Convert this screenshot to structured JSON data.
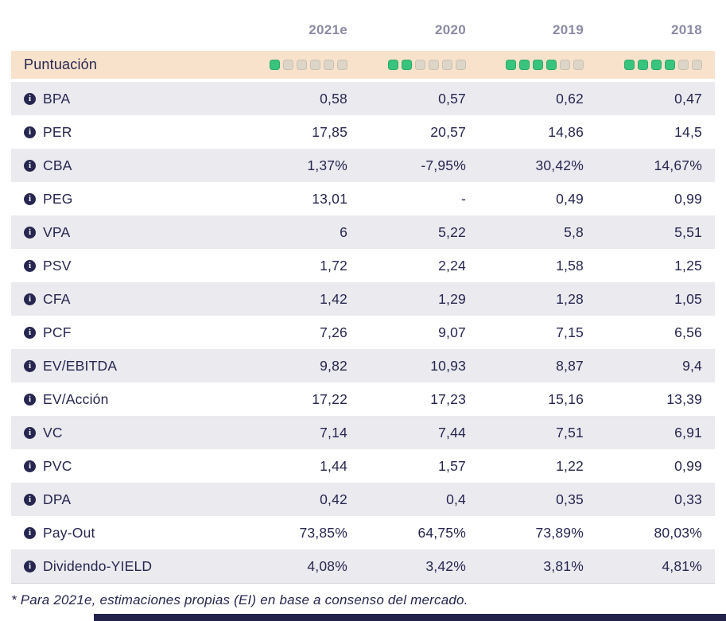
{
  "theme": {
    "text_color": "#262650",
    "header_year_color": "#8a8aa5",
    "score_row_bg": "#f9e2cb",
    "alt_row_bg": "#eaeaef",
    "active_square_color": "#38c47d",
    "inactive_square_color": "#ddd6c8"
  },
  "icons": {
    "info_glyph": "i",
    "info_name": "info-circle-icon"
  },
  "table": {
    "columns": [
      "2021e",
      "2020",
      "2019",
      "2018"
    ],
    "score_row": {
      "label": "Puntuación",
      "max_squares": 6,
      "scores": [
        1,
        2,
        4,
        4
      ]
    },
    "rows": [
      {
        "label": "BPA",
        "values": [
          "0,58",
          "0,57",
          "0,62",
          "0,47"
        ]
      },
      {
        "label": "PER",
        "values": [
          "17,85",
          "20,57",
          "14,86",
          "14,5"
        ]
      },
      {
        "label": "CBA",
        "values": [
          "1,37%",
          "-7,95%",
          "30,42%",
          "14,67%"
        ]
      },
      {
        "label": "PEG",
        "values": [
          "13,01",
          "-",
          "0,49",
          "0,99"
        ]
      },
      {
        "label": "VPA",
        "values": [
          "6",
          "5,22",
          "5,8",
          "5,51"
        ]
      },
      {
        "label": "PSV",
        "values": [
          "1,72",
          "2,24",
          "1,58",
          "1,25"
        ]
      },
      {
        "label": "CFA",
        "values": [
          "1,42",
          "1,29",
          "1,28",
          "1,05"
        ]
      },
      {
        "label": "PCF",
        "values": [
          "7,26",
          "9,07",
          "7,15",
          "6,56"
        ]
      },
      {
        "label": "EV/EBITDA",
        "values": [
          "9,82",
          "10,93",
          "8,87",
          "9,4"
        ]
      },
      {
        "label": "EV/Acción",
        "values": [
          "17,22",
          "17,23",
          "15,16",
          "13,39"
        ]
      },
      {
        "label": "VC",
        "values": [
          "7,14",
          "7,44",
          "7,51",
          "6,91"
        ]
      },
      {
        "label": "PVC",
        "values": [
          "1,44",
          "1,57",
          "1,22",
          "0,99"
        ]
      },
      {
        "label": "DPA",
        "values": [
          "0,42",
          "0,4",
          "0,35",
          "0,33"
        ]
      },
      {
        "label": "Pay-Out",
        "values": [
          "73,85%",
          "64,75%",
          "73,89%",
          "80,03%"
        ]
      },
      {
        "label": "Dividendo-YIELD",
        "values": [
          "4,08%",
          "3,42%",
          "3,81%",
          "4,81%"
        ]
      }
    ]
  },
  "footnote": "* Para 2021e, estimaciones propias (EI) en base a consenso del mercado."
}
